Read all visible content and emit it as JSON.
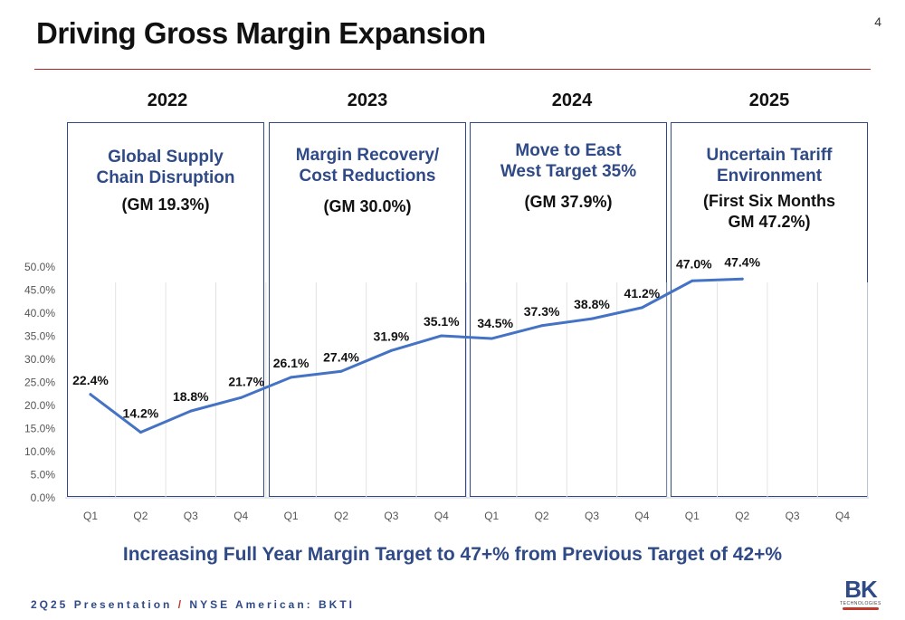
{
  "header": {
    "title": "Driving Gross Margin Expansion",
    "page_number": "4"
  },
  "periods": [
    {
      "year": "2022",
      "heading": "Global Supply Chain Disruption",
      "detail": "(GM 19.3%)"
    },
    {
      "year": "2023",
      "heading": "Margin Recovery/ Cost Reductions",
      "detail": "(GM 30.0%)"
    },
    {
      "year": "2024",
      "heading": "Move to East West Target 35%",
      "detail": "(GM 37.9%)"
    },
    {
      "year": "2025",
      "heading": "Uncertain Tariff Environment",
      "detail": "(First Six Months GM 47.2%)"
    }
  ],
  "chart_data": {
    "type": "line",
    "categories": [
      "Q1",
      "Q2",
      "Q3",
      "Q4",
      "Q1",
      "Q2",
      "Q3",
      "Q4",
      "Q1",
      "Q2",
      "Q3",
      "Q4",
      "Q1",
      "Q2",
      "Q3",
      "Q4"
    ],
    "series": [
      {
        "values": [
          22.4,
          14.2,
          18.8,
          21.7,
          26.1,
          27.4,
          31.9,
          35.1,
          34.5,
          37.3,
          38.8,
          41.2,
          47.0,
          47.4,
          null,
          null
        ]
      }
    ],
    "data_labels": [
      "22.4%",
      "14.2%",
      "18.8%",
      "21.7%",
      "26.1%",
      "27.4%",
      "31.9%",
      "35.1%",
      "34.5%",
      "37.3%",
      "38.8%",
      "41.2%",
      "47.0%",
      "47.4%",
      "",
      ""
    ],
    "yticks": [
      "0.0%",
      "5.0%",
      "10.0%",
      "15.0%",
      "20.0%",
      "25.0%",
      "30.0%",
      "35.0%",
      "40.0%",
      "45.0%",
      "50.0%"
    ],
    "ylim": [
      0,
      50
    ],
    "grid": true,
    "line_color": "#4472c4",
    "title": "",
    "xlabel": "",
    "ylabel": ""
  },
  "footer": {
    "headline": "Increasing Full Year Margin Target to 47+% from Previous Target of 42+%",
    "presentation": "2Q25 Presentation",
    "separator": "/",
    "exchange": "NYSE American: BKTI",
    "logo_text": "BK",
    "logo_subtext": "TECHNOLOGIES"
  }
}
